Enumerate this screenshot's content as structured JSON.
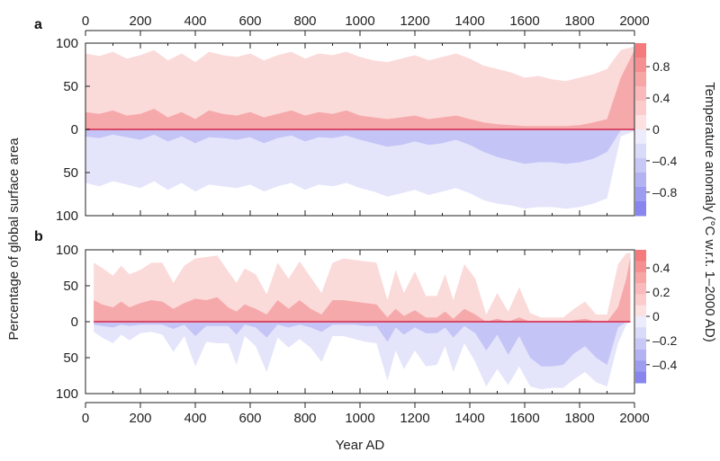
{
  "chart_data": [
    {
      "type": "area",
      "panel": "a",
      "xlim": [
        0,
        2000
      ],
      "ylim_warm": [
        0,
        100
      ],
      "ylim_cold": [
        0,
        100
      ],
      "x_ticks": [
        "0",
        "200",
        "400",
        "600",
        "800",
        "1000",
        "1200",
        "1400",
        "1600",
        "1800",
        "2000"
      ],
      "y_ticks_warm": [
        "100",
        "50",
        "0"
      ],
      "y_ticks_cold": [
        "50",
        "100"
      ],
      "x": [
        0,
        50,
        100,
        150,
        200,
        250,
        300,
        350,
        400,
        450,
        500,
        550,
        600,
        650,
        700,
        750,
        800,
        850,
        900,
        950,
        1000,
        1050,
        1100,
        1150,
        1200,
        1250,
        1300,
        1350,
        1400,
        1450,
        1500,
        1550,
        1600,
        1650,
        1700,
        1750,
        1800,
        1850,
        1900,
        1950,
        2000
      ],
      "warm_total_pct": [
        88,
        85,
        90,
        82,
        86,
        92,
        80,
        88,
        78,
        90,
        86,
        84,
        88,
        80,
        86,
        90,
        82,
        88,
        86,
        90,
        84,
        80,
        78,
        82,
        86,
        80,
        84,
        88,
        82,
        74,
        70,
        66,
        60,
        62,
        58,
        56,
        60,
        64,
        70,
        92,
        96
      ],
      "warm_strong_pct": [
        20,
        18,
        22,
        16,
        18,
        24,
        14,
        20,
        12,
        22,
        18,
        16,
        20,
        14,
        18,
        22,
        16,
        20,
        18,
        22,
        16,
        14,
        12,
        14,
        16,
        12,
        14,
        16,
        12,
        8,
        6,
        5,
        4,
        4,
        4,
        4,
        5,
        8,
        12,
        60,
        92
      ],
      "cold_total_pct": [
        62,
        66,
        60,
        64,
        68,
        60,
        70,
        62,
        72,
        64,
        66,
        68,
        64,
        72,
        66,
        62,
        70,
        64,
        66,
        62,
        68,
        72,
        78,
        74,
        70,
        76,
        72,
        68,
        74,
        82,
        86,
        88,
        92,
        90,
        90,
        92,
        90,
        86,
        80,
        8,
        2
      ],
      "cold_strong_pct": [
        8,
        10,
        6,
        9,
        12,
        6,
        14,
        8,
        16,
        9,
        10,
        12,
        9,
        16,
        10,
        7,
        14,
        9,
        10,
        7,
        12,
        16,
        20,
        18,
        14,
        18,
        16,
        12,
        18,
        26,
        32,
        36,
        40,
        38,
        38,
        40,
        38,
        34,
        26,
        1,
        0
      ],
      "colorbar_label": "Temperature anomaly (°C w.r.t. 1–2000 AD)",
      "colorbar_ticks": [
        "0.8",
        "0.4",
        "0",
        "-0.4",
        "-0.8"
      ],
      "colorbar_range": [
        -1.1,
        1.1
      ]
    },
    {
      "type": "area",
      "panel": "b",
      "xlim": [
        0,
        2000
      ],
      "ylim_warm": [
        0,
        100
      ],
      "ylim_cold": [
        0,
        100
      ],
      "x_ticks": [
        "0",
        "200",
        "400",
        "600",
        "800",
        "1000",
        "1200",
        "1400",
        "1600",
        "1800",
        "2000"
      ],
      "y_ticks_warm": [
        "100",
        "50",
        "0"
      ],
      "y_ticks_cold": [
        "50",
        "100"
      ],
      "x": [
        30,
        60,
        100,
        130,
        160,
        200,
        240,
        280,
        320,
        360,
        400,
        440,
        480,
        520,
        550,
        580,
        620,
        660,
        700,
        740,
        780,
        820,
        860,
        900,
        940,
        980,
        1020,
        1060,
        1100,
        1130,
        1160,
        1200,
        1240,
        1280,
        1310,
        1340,
        1380,
        1420,
        1460,
        1500,
        1540,
        1580,
        1620,
        1660,
        1700,
        1740,
        1780,
        1820,
        1860,
        1900,
        1940,
        1970,
        1985
      ],
      "warm_total_pct": [
        82,
        75,
        64,
        78,
        66,
        72,
        82,
        82,
        54,
        78,
        88,
        90,
        92,
        70,
        54,
        74,
        66,
        38,
        82,
        60,
        84,
        62,
        40,
        82,
        88,
        86,
        84,
        82,
        30,
        72,
        40,
        70,
        36,
        36,
        66,
        30,
        80,
        60,
        10,
        40,
        14,
        48,
        12,
        6,
        6,
        6,
        18,
        28,
        10,
        10,
        80,
        95,
        96
      ],
      "warm_mid_pct": [
        30,
        24,
        20,
        28,
        20,
        26,
        30,
        28,
        18,
        26,
        32,
        30,
        34,
        20,
        14,
        24,
        18,
        10,
        30,
        18,
        30,
        18,
        10,
        30,
        30,
        28,
        26,
        24,
        6,
        18,
        8,
        16,
        6,
        6,
        14,
        4,
        18,
        10,
        0,
        4,
        0,
        6,
        0,
        0,
        0,
        0,
        2,
        4,
        0,
        0,
        20,
        60,
        90
      ],
      "cold_total_pct": [
        14,
        22,
        30,
        18,
        26,
        16,
        14,
        18,
        42,
        20,
        62,
        28,
        30,
        30,
        60,
        20,
        34,
        70,
        22,
        36,
        24,
        36,
        56,
        20,
        20,
        24,
        28,
        30,
        82,
        40,
        66,
        40,
        62,
        60,
        34,
        70,
        30,
        56,
        90,
        66,
        88,
        62,
        90,
        94,
        92,
        92,
        80,
        70,
        84,
        90,
        30,
        4,
        0
      ],
      "cold_mid_pct": [
        4,
        6,
        8,
        4,
        6,
        4,
        4,
        4,
        10,
        4,
        20,
        6,
        6,
        6,
        18,
        4,
        8,
        22,
        4,
        8,
        4,
        8,
        14,
        4,
        4,
        4,
        6,
        6,
        28,
        8,
        18,
        8,
        16,
        16,
        8,
        22,
        6,
        16,
        40,
        18,
        46,
        20,
        50,
        62,
        62,
        60,
        44,
        34,
        50,
        60,
        8,
        0,
        0
      ],
      "colorbar_ticks": [
        "0.4",
        "0.2",
        "0",
        "-0.2",
        "-0.4"
      ],
      "colorbar_range": [
        -0.55,
        0.55
      ]
    }
  ],
  "labels": {
    "panel_a": "a",
    "panel_b": "b",
    "ylabel": "Percentage of global surface area",
    "xlabel": "Year AD",
    "cbar_label": "Temperature anomaly (°C w.r.t. 1–2000 AD)"
  },
  "colors": {
    "warm_light": "#fbdada",
    "warm_mid": "#f6a9aa",
    "warm_strong": "#ef6f72",
    "cold_light": "#e4e4fb",
    "cold_mid": "#c4c4f6",
    "cold_strong": "#8c8cf0",
    "zero_line": "#d94a6a"
  }
}
